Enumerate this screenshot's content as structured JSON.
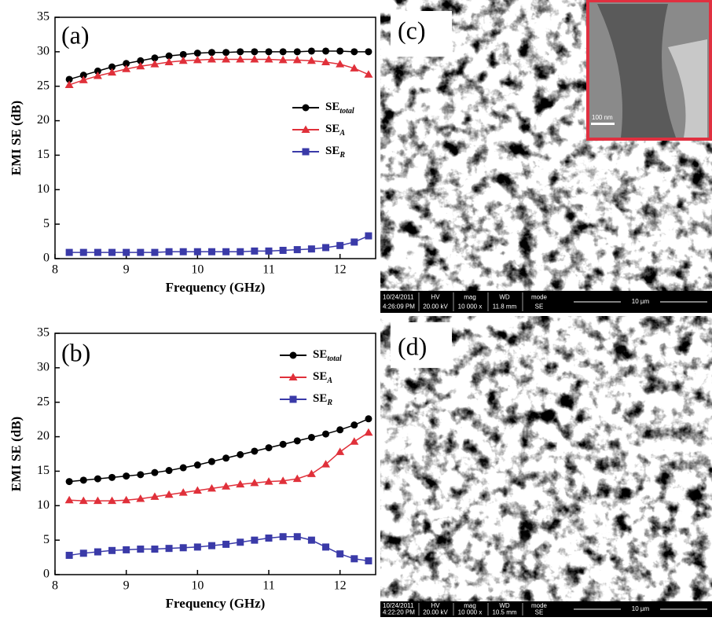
{
  "chart_data": [
    {
      "type": "line",
      "annotation": "(a)",
      "x_label": "Frequency (GHz)",
      "y_label": "EMI SE (dB)",
      "x": [
        8.2,
        8.4,
        8.6,
        8.8,
        9.0,
        9.2,
        9.4,
        9.6,
        9.8,
        10.0,
        10.2,
        10.4,
        10.6,
        10.8,
        11.0,
        11.2,
        11.4,
        11.6,
        11.8,
        12.0,
        12.2,
        12.4
      ],
      "xlim": [
        8,
        12.5
      ],
      "xticks": [
        8,
        9,
        10,
        11,
        12
      ],
      "ylim": [
        0,
        35
      ],
      "yticks": [
        0,
        5,
        10,
        15,
        20,
        25,
        30,
        35
      ],
      "series": [
        {
          "name": "SE",
          "subscript": "total",
          "color": "#000000",
          "marker": "circle",
          "values": [
            26.0,
            26.6,
            27.2,
            27.8,
            28.3,
            28.7,
            29.1,
            29.4,
            29.6,
            29.8,
            29.9,
            29.9,
            30.0,
            30.0,
            30.0,
            30.0,
            30.0,
            30.1,
            30.1,
            30.1,
            30.0,
            30.0
          ]
        },
        {
          "name": "SE",
          "subscript": "A",
          "color": "#e0303a",
          "marker": "triangle",
          "values": [
            25.2,
            25.9,
            26.5,
            27.0,
            27.5,
            27.9,
            28.2,
            28.5,
            28.7,
            28.8,
            28.9,
            28.9,
            28.9,
            28.9,
            28.9,
            28.8,
            28.8,
            28.7,
            28.5,
            28.2,
            27.6,
            26.7
          ]
        },
        {
          "name": "SE",
          "subscript": "R",
          "color": "#3a3aa8",
          "marker": "square",
          "values": [
            0.9,
            0.9,
            0.9,
            0.9,
            0.9,
            0.9,
            0.9,
            1.0,
            1.0,
            1.0,
            1.0,
            1.0,
            1.0,
            1.1,
            1.1,
            1.2,
            1.3,
            1.4,
            1.6,
            1.9,
            2.4,
            3.3
          ]
        }
      ]
    },
    {
      "type": "line",
      "annotation": "(b)",
      "x_label": "Frequency (GHz)",
      "y_label": "EMI SE (dB)",
      "x": [
        8.2,
        8.4,
        8.6,
        8.8,
        9.0,
        9.2,
        9.4,
        9.6,
        9.8,
        10.0,
        10.2,
        10.4,
        10.6,
        10.8,
        11.0,
        11.2,
        11.4,
        11.6,
        11.8,
        12.0,
        12.2,
        12.4
      ],
      "xlim": [
        8,
        12.5
      ],
      "xticks": [
        8,
        9,
        10,
        11,
        12
      ],
      "ylim": [
        0,
        35
      ],
      "yticks": [
        0,
        5,
        10,
        15,
        20,
        25,
        30,
        35
      ],
      "series": [
        {
          "name": "SE",
          "subscript": "total",
          "color": "#000000",
          "marker": "circle",
          "values": [
            13.5,
            13.7,
            13.9,
            14.1,
            14.3,
            14.5,
            14.8,
            15.1,
            15.5,
            15.9,
            16.4,
            16.9,
            17.4,
            17.9,
            18.4,
            18.9,
            19.4,
            19.9,
            20.4,
            21.0,
            21.7,
            22.6
          ]
        },
        {
          "name": "SE",
          "subscript": "A",
          "color": "#e0303a",
          "marker": "triangle",
          "values": [
            10.8,
            10.7,
            10.7,
            10.7,
            10.8,
            11.0,
            11.3,
            11.6,
            11.9,
            12.2,
            12.5,
            12.8,
            13.1,
            13.3,
            13.5,
            13.6,
            13.9,
            14.6,
            16.0,
            17.8,
            19.3,
            20.6
          ]
        },
        {
          "name": "SE",
          "subscript": "R",
          "color": "#3a3aa8",
          "marker": "square",
          "values": [
            2.8,
            3.1,
            3.3,
            3.5,
            3.6,
            3.7,
            3.7,
            3.8,
            3.9,
            4.0,
            4.2,
            4.4,
            4.7,
            5.0,
            5.3,
            5.5,
            5.5,
            5.0,
            4.0,
            3.0,
            2.3,
            2.0
          ]
        }
      ]
    }
  ],
  "images": [
    {
      "label": "(c)",
      "inset_scale": "100 nm",
      "scale": "10 µm",
      "date": "10/24/2011",
      "time": "4:26:09 PM",
      "hv_label": "HV",
      "hv": "20.00 kV",
      "mag_label": "mag",
      "mag": "10 000 x",
      "wd_label": "WD",
      "wd": "11.8 mm",
      "mode_label": "mode",
      "mode": "SE"
    },
    {
      "label": "(d)",
      "scale": "10 µm",
      "date": "10/24/2011",
      "time": "4:22:20 PM",
      "hv_label": "HV",
      "hv": "20.00 kV",
      "mag_label": "mag",
      "mag": "10 000 x",
      "wd_label": "WD",
      "wd": "10.5 mm",
      "mode_label": "mode",
      "mode": "SE"
    }
  ]
}
